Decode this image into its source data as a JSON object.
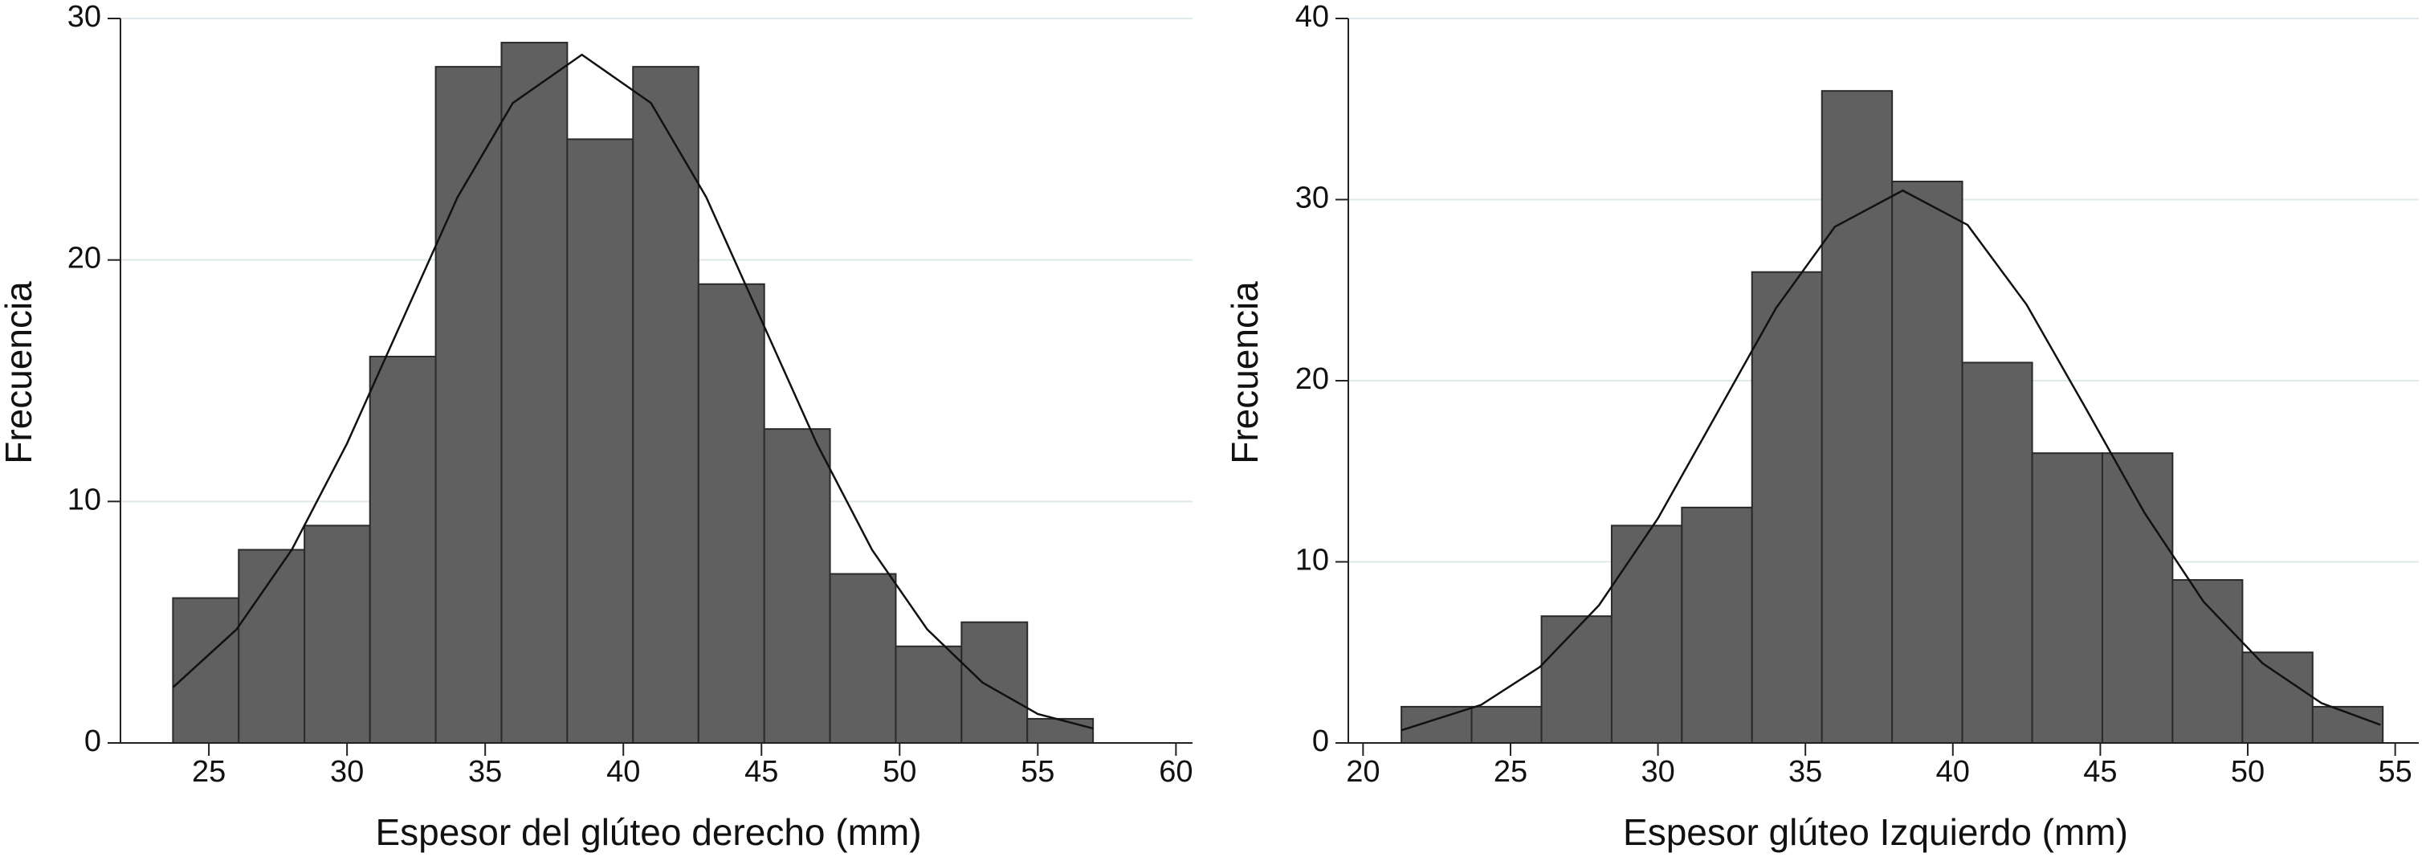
{
  "chart_data": [
    {
      "type": "histogram",
      "x_label": "Espesor del glúteo derecho (mm)",
      "y_label": "Frecuencia",
      "bins": [
        23.7,
        26.08,
        28.46,
        30.83,
        33.21,
        35.59,
        37.97,
        40.35,
        42.72,
        45.1,
        47.48,
        49.86,
        52.24,
        54.62,
        57.0
      ],
      "values": [
        6,
        8,
        9,
        16,
        28,
        29,
        25,
        28,
        19,
        13,
        7,
        4,
        5,
        1
      ],
      "color": "#606060",
      "curve": {
        "x": [
          23.7,
          26,
          28,
          30,
          32,
          34,
          36,
          38.5,
          41,
          43,
          45,
          47,
          49,
          51,
          53,
          55,
          57
        ],
        "values": [
          2.3,
          4.7,
          8.0,
          12.4,
          17.5,
          22.6,
          26.5,
          28.5,
          26.5,
          22.6,
          17.5,
          12.4,
          8.0,
          4.7,
          2.5,
          1.2,
          0.6
        ]
      },
      "xlim": [
        21.8,
        60.6
      ],
      "xticks": [
        25,
        30,
        35,
        40,
        45,
        50,
        55,
        60
      ],
      "ylim": [
        0,
        30
      ],
      "yticks": [
        0,
        10,
        20,
        30
      ],
      "grid": true
    },
    {
      "type": "histogram",
      "x_label": "Espesor glúteo Izquierdo (mm)",
      "y_label": "Frecuencia",
      "bins": [
        21.3,
        23.68,
        26.05,
        28.43,
        30.81,
        33.19,
        35.56,
        37.94,
        40.32,
        42.69,
        45.07,
        47.45,
        49.82,
        52.2,
        54.58
      ],
      "values": [
        2,
        2,
        7,
        12,
        13,
        26,
        36,
        31,
        21,
        16,
        16,
        9,
        5,
        2
      ],
      "color": "#606060",
      "curve": {
        "x": [
          21.3,
          24,
          26,
          28,
          30,
          32,
          34,
          36,
          38.3,
          40.5,
          42.5,
          44.5,
          46.5,
          48.5,
          50.5,
          52.5,
          54.5
        ],
        "values": [
          0.7,
          2.1,
          4.2,
          7.6,
          12.4,
          18.2,
          24.0,
          28.5,
          30.5,
          28.6,
          24.2,
          18.5,
          12.7,
          7.8,
          4.4,
          2.2,
          1.0
        ]
      },
      "xlim": [
        19.5,
        55.8
      ],
      "xticks": [
        20,
        25,
        30,
        35,
        40,
        45,
        50,
        55
      ],
      "ylim": [
        0,
        40
      ],
      "yticks": [
        0,
        10,
        20,
        30,
        40
      ],
      "grid": true
    }
  ]
}
